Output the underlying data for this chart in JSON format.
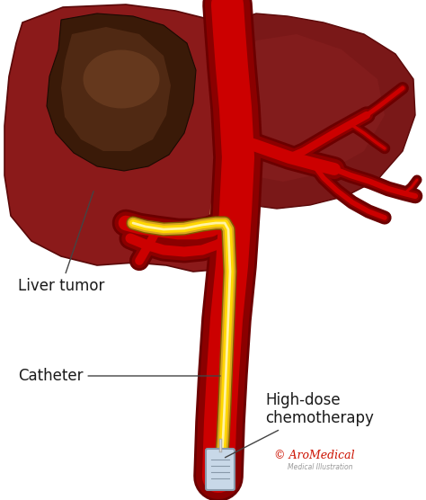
{
  "background_color": "#ffffff",
  "liver_dark": "#7A1515",
  "liver_mid": "#8B1A1A",
  "liver_light": "#A52828",
  "liver_shadow": "#5A0E0E",
  "right_lobe_color": "#8B1A1A",
  "right_lobe_light": "#7A1010",
  "tumor_dark": "#3A1A08",
  "tumor_mid": "#5A2E12",
  "tumor_light": "#7A4A28",
  "vessel_outer": "#8B0000",
  "vessel_inner": "#CC0000",
  "vessel_dark": "#6B0000",
  "catheter_yellow": "#FFD700",
  "catheter_gold": "#DAA520",
  "catheter_light": "#FFFACD",
  "catheter_dark": "#B8860B",
  "text_color": "#1a1a1a",
  "label_liver_tumor": "Liver tumor",
  "label_catheter": "Catheter",
  "label_chemo": "High-dose\nchemotherapy",
  "watermark": "© AroMedical",
  "watermark_sub": "Medical Illustration",
  "figsize": [
    4.74,
    5.56
  ],
  "dpi": 100
}
